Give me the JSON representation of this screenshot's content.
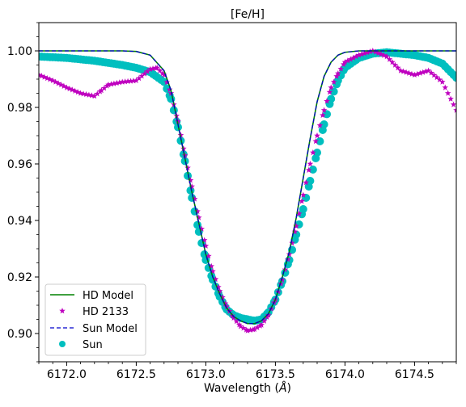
{
  "chart_data": {
    "type": "line",
    "title": "[Fe/H]",
    "xlabel": "Wavelength (",
    "xlabel_unit": "Å",
    "xlabel_close": ")",
    "ylabel": "",
    "xlim": [
      6171.8,
      6174.8
    ],
    "ylim": [
      0.89,
      1.01
    ],
    "x_ticks": [
      6172.0,
      6172.5,
      6173.0,
      6173.5,
      6174.0,
      6174.5
    ],
    "x_tick_labels": [
      "6172.0",
      "6172.5",
      "6173.0",
      "6173.5",
      "6174.0",
      "6174.5"
    ],
    "y_ticks": [
      0.9,
      0.92,
      0.94,
      0.96,
      0.98,
      1.0
    ],
    "y_tick_labels": [
      "0.90",
      "0.92",
      "0.94",
      "0.96",
      "0.98",
      "1.00"
    ],
    "grid": false,
    "legend_position": "lower-left",
    "legend": [
      "HD Model",
      "HD 2133",
      "Sun Model",
      "Sun"
    ],
    "series": [
      {
        "name": "HD Model",
        "style": "solid-line",
        "color": "#008000",
        "x": [
          6171.8,
          6172.4,
          6172.5,
          6172.6,
          6172.7,
          6172.75,
          6172.8,
          6172.85,
          6172.9,
          6172.95,
          6173.0,
          6173.05,
          6173.1,
          6173.15,
          6173.2,
          6173.25,
          6173.3,
          6173.35,
          6173.4,
          6173.45,
          6173.5,
          6173.55,
          6173.6,
          6173.65,
          6173.7,
          6173.75,
          6173.8,
          6173.85,
          6173.9,
          6173.95,
          6174.0,
          6174.1,
          6174.2,
          6174.8
        ],
        "y": [
          1.0,
          1.0,
          0.9998,
          0.9985,
          0.993,
          0.986,
          0.974,
          0.962,
          0.95,
          0.939,
          0.928,
          0.92,
          0.914,
          0.909,
          0.906,
          0.9045,
          0.9035,
          0.9035,
          0.9045,
          0.907,
          0.912,
          0.92,
          0.929,
          0.941,
          0.955,
          0.969,
          0.982,
          0.991,
          0.996,
          0.9985,
          0.9995,
          1.0,
          1.0,
          1.0
        ]
      },
      {
        "name": "HD 2133",
        "style": "star-markers",
        "color": "#bf00bf",
        "x": [
          6171.8,
          6171.9,
          6172.0,
          6172.1,
          6172.2,
          6172.25,
          6172.3,
          6172.4,
          6172.5,
          6172.6,
          6172.65,
          6172.7,
          6172.75,
          6172.8,
          6172.85,
          6172.9,
          6172.95,
          6173.0,
          6173.05,
          6173.1,
          6173.15,
          6173.2,
          6173.25,
          6173.3,
          6173.35,
          6173.4,
          6173.45,
          6173.5,
          6173.55,
          6173.6,
          6173.65,
          6173.7,
          6173.75,
          6173.8,
          6173.85,
          6173.9,
          6173.95,
          6174.0,
          6174.1,
          6174.2,
          6174.3,
          6174.4,
          6174.5,
          6174.6,
          6174.7,
          6174.8
        ],
        "y": [
          0.9915,
          0.9895,
          0.987,
          0.985,
          0.984,
          0.986,
          0.988,
          0.989,
          0.9895,
          0.9935,
          0.994,
          0.9915,
          0.985,
          0.975,
          0.963,
          0.952,
          0.941,
          0.931,
          0.922,
          0.915,
          0.9095,
          0.9055,
          0.9025,
          0.901,
          0.9015,
          0.903,
          0.9065,
          0.912,
          0.919,
          0.928,
          0.938,
          0.949,
          0.96,
          0.97,
          0.979,
          0.987,
          0.992,
          0.996,
          0.9985,
          1.0,
          0.998,
          0.993,
          0.9915,
          0.993,
          0.989,
          0.979
        ]
      },
      {
        "name": "Sun Model",
        "style": "dashed-line",
        "color": "#0000cc",
        "x": [
          6171.8,
          6172.4,
          6172.5,
          6172.6,
          6172.7,
          6172.75,
          6172.8,
          6172.85,
          6172.9,
          6172.95,
          6173.0,
          6173.05,
          6173.1,
          6173.15,
          6173.2,
          6173.25,
          6173.3,
          6173.35,
          6173.4,
          6173.45,
          6173.5,
          6173.55,
          6173.6,
          6173.65,
          6173.7,
          6173.75,
          6173.8,
          6173.85,
          6173.9,
          6173.95,
          6174.0,
          6174.1,
          6174.2,
          6174.8
        ],
        "y": [
          1.0,
          1.0,
          0.9998,
          0.9985,
          0.993,
          0.986,
          0.974,
          0.962,
          0.95,
          0.939,
          0.928,
          0.92,
          0.914,
          0.909,
          0.906,
          0.9045,
          0.9035,
          0.9035,
          0.9045,
          0.907,
          0.912,
          0.92,
          0.929,
          0.941,
          0.955,
          0.969,
          0.982,
          0.991,
          0.996,
          0.9985,
          0.9995,
          1.0,
          1.0,
          1.0
        ]
      },
      {
        "name": "Sun",
        "style": "circle-markers",
        "color": "#00bfbf",
        "x": [
          6171.8,
          6172.0,
          6172.2,
          6172.4,
          6172.5,
          6172.6,
          6172.7,
          6172.75,
          6172.8,
          6172.85,
          6172.9,
          6172.95,
          6173.0,
          6173.05,
          6173.1,
          6173.15,
          6173.2,
          6173.25,
          6173.3,
          6173.35,
          6173.4,
          6173.45,
          6173.5,
          6173.55,
          6173.6,
          6173.65,
          6173.7,
          6173.75,
          6173.8,
          6173.85,
          6173.9,
          6173.95,
          6174.0,
          6174.1,
          6174.2,
          6174.3,
          6174.4,
          6174.5,
          6174.6,
          6174.7,
          6174.8
        ],
        "y": [
          0.998,
          0.9975,
          0.9965,
          0.995,
          0.994,
          0.9925,
          0.989,
          0.983,
          0.973,
          0.961,
          0.948,
          0.936,
          0.926,
          0.919,
          0.913,
          0.9085,
          0.9065,
          0.9055,
          0.905,
          0.9045,
          0.905,
          0.9075,
          0.912,
          0.9185,
          0.926,
          0.935,
          0.944,
          0.954,
          0.964,
          0.974,
          0.983,
          0.9895,
          0.994,
          0.9975,
          0.999,
          0.9995,
          0.999,
          0.9985,
          0.9975,
          0.9955,
          0.9905
        ]
      }
    ]
  }
}
